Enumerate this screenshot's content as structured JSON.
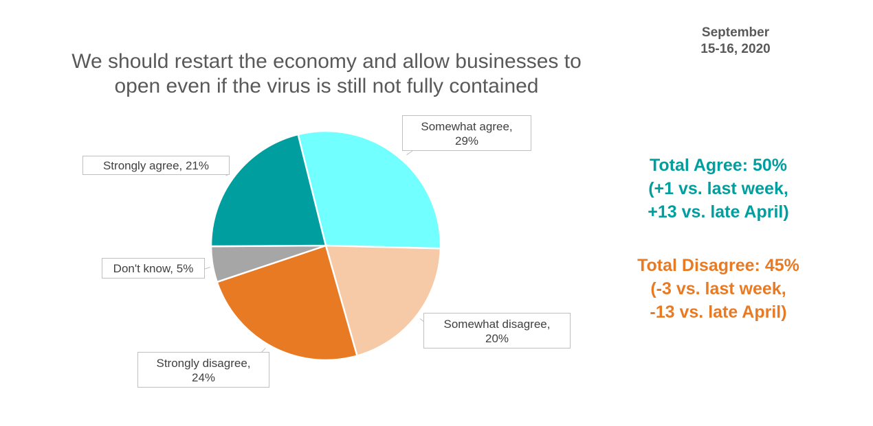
{
  "date": [
    "September",
    "15-16, 2020"
  ],
  "chart_data": {
    "type": "pie",
    "title": [
      "We should restart the economy and allow businesses to",
      "open even if the virus is still not fully contained"
    ],
    "slices": [
      {
        "label": "Somewhat agree",
        "value": 29,
        "color": "#71FFFF",
        "data_label": [
          "Somewhat agree,",
          "29%"
        ]
      },
      {
        "label": "Somewhat disagree",
        "value": 20,
        "color": "#F6CAA7",
        "data_label": [
          "Somewhat disagree,",
          "20%"
        ]
      },
      {
        "label": "Strongly disagree",
        "value": 24,
        "color": "#E87A24",
        "data_label": [
          "Strongly disagree,",
          "24%"
        ]
      },
      {
        "label": "Don't know",
        "value": 5,
        "color": "#A6A6A6",
        "data_label": [
          "Don't know, 5%"
        ]
      },
      {
        "label": "Strongly agree",
        "value": 21,
        "color": "#009E9E",
        "data_label": [
          "Strongly agree, 21%"
        ]
      }
    ]
  },
  "summary": {
    "agree": {
      "lines": [
        "Total Agree: 50%",
        "(+1 vs. last week,",
        "+13 vs. late April)"
      ],
      "color": "#009E9E"
    },
    "disagree": {
      "lines": [
        "Total Disagree: 45%",
        "(-3 vs. last week,",
        "-13 vs. late April)"
      ],
      "color": "#E87A24"
    }
  }
}
